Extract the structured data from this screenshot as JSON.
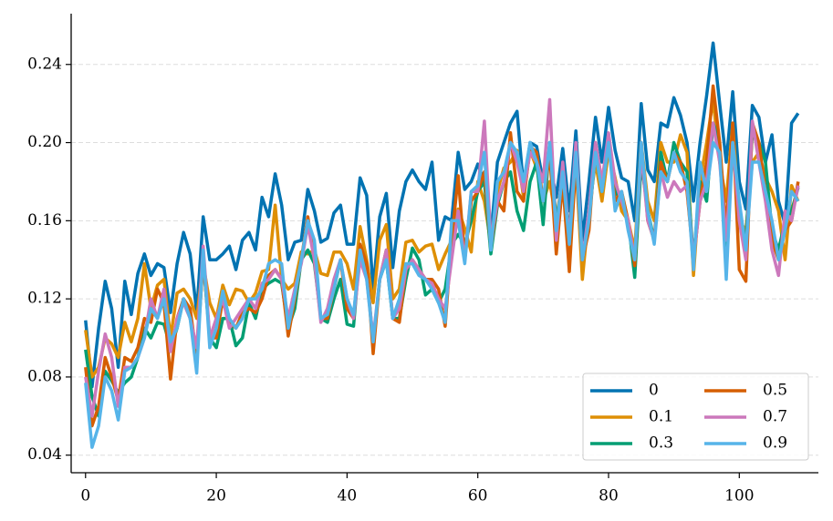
{
  "chart_data": {
    "type": "line",
    "x": [
      0,
      1,
      2,
      3,
      4,
      5,
      6,
      7,
      8,
      9,
      10,
      11,
      12,
      13,
      14,
      15,
      16,
      17,
      18,
      19,
      20,
      21,
      22,
      23,
      24,
      25,
      26,
      27,
      28,
      29,
      30,
      31,
      32,
      33,
      34,
      35,
      36,
      37,
      38,
      39,
      40,
      41,
      42,
      43,
      44,
      45,
      46,
      47,
      48,
      49,
      50,
      51,
      52,
      53,
      54,
      55,
      56,
      57,
      58,
      59,
      60,
      61,
      62,
      63,
      64,
      65,
      66,
      67,
      68,
      69,
      70,
      71,
      72,
      73,
      74,
      75,
      76,
      77,
      78,
      79,
      80,
      81,
      82,
      83,
      84,
      85,
      86,
      87,
      88,
      89,
      90,
      91,
      92,
      93,
      94,
      95,
      96,
      97,
      98,
      99,
      100,
      101,
      102,
      103,
      104,
      105,
      106,
      107,
      108,
      109
    ],
    "series": [
      {
        "name": "0",
        "color": "#0173b2",
        "values": [
          0.109,
          0.075,
          0.105,
          0.129,
          0.115,
          0.085,
          0.129,
          0.112,
          0.133,
          0.143,
          0.132,
          0.138,
          0.136,
          0.113,
          0.138,
          0.154,
          0.143,
          0.113,
          0.162,
          0.14,
          0.14,
          0.143,
          0.147,
          0.135,
          0.15,
          0.154,
          0.145,
          0.172,
          0.162,
          0.184,
          0.168,
          0.14,
          0.149,
          0.15,
          0.176,
          0.165,
          0.149,
          0.151,
          0.164,
          0.168,
          0.148,
          0.148,
          0.182,
          0.173,
          0.125,
          0.162,
          0.174,
          0.136,
          0.165,
          0.18,
          0.186,
          0.18,
          0.176,
          0.19,
          0.15,
          0.162,
          0.16,
          0.195,
          0.176,
          0.18,
          0.189,
          0.18,
          0.152,
          0.19,
          0.2,
          0.21,
          0.216,
          0.177,
          0.2,
          0.198,
          0.18,
          0.19,
          0.172,
          0.197,
          0.165,
          0.206,
          0.15,
          0.18,
          0.213,
          0.19,
          0.218,
          0.196,
          0.182,
          0.18,
          0.16,
          0.22,
          0.186,
          0.18,
          0.21,
          0.208,
          0.223,
          0.214,
          0.2,
          0.17,
          0.2,
          0.224,
          0.251,
          0.22,
          0.19,
          0.226,
          0.18,
          0.166,
          0.219,
          0.213,
          0.19,
          0.204,
          0.17,
          0.158,
          0.21,
          0.215
        ]
      },
      {
        "name": "0.1",
        "color": "#de8f05",
        "values": [
          0.104,
          0.08,
          0.085,
          0.1,
          0.097,
          0.09,
          0.108,
          0.098,
          0.11,
          0.138,
          0.115,
          0.127,
          0.13,
          0.1,
          0.123,
          0.125,
          0.12,
          0.11,
          0.138,
          0.118,
          0.11,
          0.127,
          0.117,
          0.125,
          0.124,
          0.118,
          0.123,
          0.134,
          0.135,
          0.168,
          0.13,
          0.125,
          0.128,
          0.144,
          0.143,
          0.145,
          0.133,
          0.132,
          0.144,
          0.144,
          0.138,
          0.125,
          0.157,
          0.14,
          0.118,
          0.15,
          0.158,
          0.12,
          0.125,
          0.149,
          0.15,
          0.144,
          0.147,
          0.148,
          0.135,
          0.143,
          0.15,
          0.166,
          0.156,
          0.144,
          0.18,
          0.17,
          0.148,
          0.175,
          0.187,
          0.19,
          0.196,
          0.172,
          0.196,
          0.187,
          0.17,
          0.18,
          0.16,
          0.183,
          0.15,
          0.19,
          0.13,
          0.165,
          0.19,
          0.17,
          0.196,
          0.182,
          0.165,
          0.16,
          0.145,
          0.2,
          0.17,
          0.16,
          0.2,
          0.19,
          0.19,
          0.204,
          0.195,
          0.132,
          0.18,
          0.2,
          0.222,
          0.19,
          0.17,
          0.21,
          0.16,
          0.155,
          0.19,
          0.195,
          0.182,
          0.175,
          0.165,
          0.14,
          0.178,
          0.17
        ]
      },
      {
        "name": "0.3",
        "color": "#029e73",
        "values": [
          0.094,
          0.07,
          0.06,
          0.083,
          0.078,
          0.072,
          0.077,
          0.08,
          0.09,
          0.105,
          0.1,
          0.108,
          0.107,
          0.095,
          0.105,
          0.12,
          0.11,
          0.092,
          0.14,
          0.1,
          0.095,
          0.11,
          0.11,
          0.096,
          0.1,
          0.118,
          0.11,
          0.125,
          0.128,
          0.13,
          0.128,
          0.105,
          0.115,
          0.14,
          0.145,
          0.138,
          0.11,
          0.108,
          0.12,
          0.13,
          0.107,
          0.106,
          0.145,
          0.135,
          0.097,
          0.13,
          0.14,
          0.11,
          0.11,
          0.13,
          0.146,
          0.14,
          0.122,
          0.125,
          0.118,
          0.125,
          0.148,
          0.153,
          0.148,
          0.16,
          0.175,
          0.18,
          0.143,
          0.168,
          0.18,
          0.185,
          0.165,
          0.155,
          0.18,
          0.19,
          0.158,
          0.2,
          0.16,
          0.18,
          0.155,
          0.195,
          0.14,
          0.16,
          0.195,
          0.175,
          0.2,
          0.175,
          0.17,
          0.16,
          0.131,
          0.19,
          0.165,
          0.15,
          0.195,
          0.18,
          0.2,
          0.19,
          0.185,
          0.14,
          0.18,
          0.17,
          0.21,
          0.2,
          0.14,
          0.2,
          0.16,
          0.15,
          0.205,
          0.2,
          0.19,
          0.155,
          0.145,
          0.16,
          0.165,
          0.177
        ]
      },
      {
        "name": "0.5",
        "color": "#d55e00",
        "values": [
          0.085,
          0.055,
          0.065,
          0.09,
          0.08,
          0.068,
          0.09,
          0.088,
          0.095,
          0.11,
          0.108,
          0.125,
          0.118,
          0.079,
          0.11,
          0.12,
          0.115,
          0.09,
          0.14,
          0.1,
          0.1,
          0.12,
          0.108,
          0.105,
          0.113,
          0.115,
          0.113,
          0.12,
          0.132,
          0.135,
          0.13,
          0.101,
          0.12,
          0.14,
          0.162,
          0.14,
          0.11,
          0.11,
          0.125,
          0.14,
          0.115,
          0.11,
          0.148,
          0.138,
          0.092,
          0.13,
          0.145,
          0.11,
          0.108,
          0.135,
          0.14,
          0.135,
          0.13,
          0.13,
          0.125,
          0.106,
          0.15,
          0.183,
          0.14,
          0.17,
          0.175,
          0.185,
          0.146,
          0.17,
          0.165,
          0.205,
          0.175,
          0.17,
          0.198,
          0.195,
          0.17,
          0.195,
          0.143,
          0.18,
          0.134,
          0.19,
          0.14,
          0.155,
          0.2,
          0.18,
          0.2,
          0.17,
          0.175,
          0.16,
          0.137,
          0.2,
          0.16,
          0.15,
          0.19,
          0.18,
          0.195,
          0.19,
          0.175,
          0.14,
          0.17,
          0.19,
          0.229,
          0.2,
          0.155,
          0.21,
          0.135,
          0.129,
          0.21,
          0.2,
          0.175,
          0.15,
          0.14,
          0.155,
          0.16,
          0.18
        ]
      },
      {
        "name": "0.7",
        "color": "#cc78bc",
        "values": [
          0.08,
          0.06,
          0.083,
          0.102,
          0.09,
          0.065,
          0.085,
          0.085,
          0.09,
          0.1,
          0.12,
          0.11,
          0.125,
          0.093,
          0.11,
          0.118,
          0.11,
          0.095,
          0.147,
          0.1,
          0.11,
          0.12,
          0.105,
          0.11,
          0.115,
          0.12,
          0.115,
          0.128,
          0.13,
          0.135,
          0.13,
          0.11,
          0.125,
          0.138,
          0.158,
          0.14,
          0.108,
          0.115,
          0.13,
          0.14,
          0.12,
          0.11,
          0.14,
          0.13,
          0.1,
          0.13,
          0.145,
          0.11,
          0.115,
          0.135,
          0.14,
          0.135,
          0.13,
          0.128,
          0.12,
          0.115,
          0.14,
          0.165,
          0.14,
          0.175,
          0.175,
          0.211,
          0.15,
          0.17,
          0.18,
          0.2,
          0.19,
          0.175,
          0.195,
          0.19,
          0.18,
          0.222,
          0.15,
          0.19,
          0.15,
          0.2,
          0.14,
          0.165,
          0.2,
          0.18,
          0.205,
          0.18,
          0.17,
          0.16,
          0.14,
          0.195,
          0.16,
          0.15,
          0.185,
          0.172,
          0.18,
          0.175,
          0.178,
          0.14,
          0.17,
          0.18,
          0.21,
          0.19,
          0.15,
          0.2,
          0.16,
          0.14,
          0.211,
          0.19,
          0.17,
          0.145,
          0.132,
          0.165,
          0.16,
          0.178
        ]
      },
      {
        "name": "0.9",
        "color": "#56b4e9",
        "values": [
          0.077,
          0.044,
          0.055,
          0.08,
          0.073,
          0.058,
          0.083,
          0.085,
          0.09,
          0.1,
          0.115,
          0.11,
          0.12,
          0.098,
          0.105,
          0.12,
          0.11,
          0.082,
          0.145,
          0.095,
          0.105,
          0.124,
          0.11,
          0.105,
          0.11,
          0.12,
          0.12,
          0.125,
          0.138,
          0.14,
          0.138,
          0.105,
          0.122,
          0.14,
          0.16,
          0.15,
          0.11,
          0.112,
          0.125,
          0.14,
          0.12,
          0.112,
          0.145,
          0.13,
          0.098,
          0.13,
          0.14,
          0.11,
          0.12,
          0.138,
          0.138,
          0.132,
          0.13,
          0.125,
          0.118,
          0.108,
          0.16,
          0.16,
          0.138,
          0.175,
          0.178,
          0.195,
          0.145,
          0.18,
          0.185,
          0.2,
          0.195,
          0.18,
          0.2,
          0.19,
          0.17,
          0.2,
          0.155,
          0.185,
          0.148,
          0.195,
          0.14,
          0.16,
          0.195,
          0.175,
          0.2,
          0.165,
          0.175,
          0.155,
          0.14,
          0.2,
          0.165,
          0.148,
          0.185,
          0.18,
          0.195,
          0.185,
          0.18,
          0.135,
          0.19,
          0.175,
          0.2,
          0.195,
          0.13,
          0.2,
          0.17,
          0.145,
          0.19,
          0.19,
          0.175,
          0.16,
          0.14,
          0.155,
          0.175,
          0.17
        ]
      }
    ],
    "xlim": [
      -2.2,
      112.1
    ],
    "ylim": [
      0.031,
      0.266
    ],
    "xticks": [
      0,
      20,
      40,
      60,
      80,
      100
    ],
    "yticks": [
      0.04,
      0.08,
      0.12,
      0.16,
      {
        "value": 0.2,
        "label": "0.20"
      },
      0.24
    ],
    "grid": true,
    "legend": "lower right",
    "legend_columns": 2
  }
}
